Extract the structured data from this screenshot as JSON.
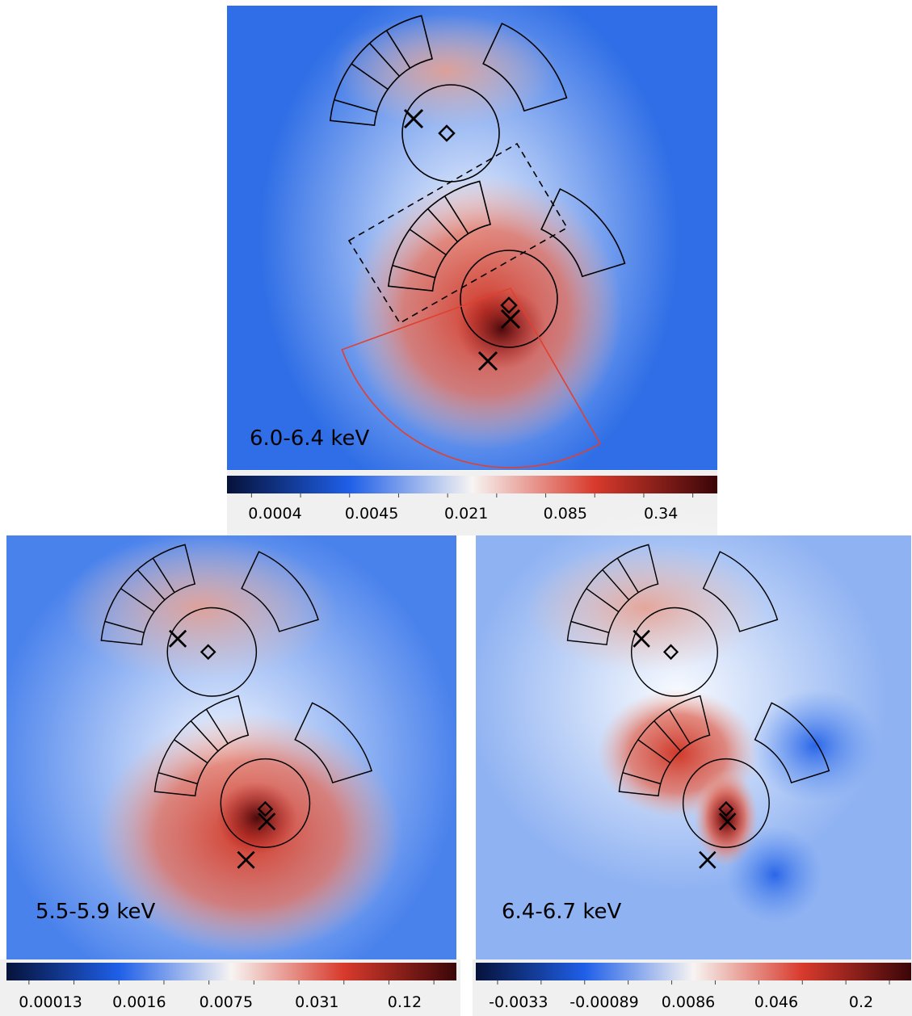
{
  "panels": [
    {
      "label": "6.0-6.4 keV",
      "colorbar_ticks": [
        "0.0004",
        "0.0045",
        "0.021",
        "0.085",
        "0.34"
      ]
    },
    {
      "label": "5.5-5.9 keV",
      "colorbar_ticks": [
        "0.00013",
        "0.0016",
        "0.0075",
        "0.031",
        "0.12"
      ]
    },
    {
      "label": "6.4-6.7 keV",
      "colorbar_ticks": [
        "-0.0033",
        "-0.00089",
        "0.0086",
        "0.046",
        "0.2"
      ]
    }
  ]
}
